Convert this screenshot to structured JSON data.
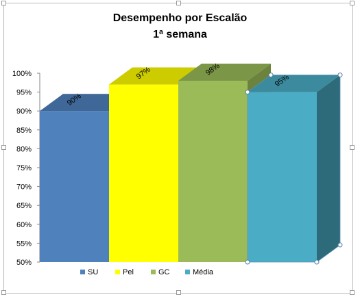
{
  "chart_data": {
    "type": "bar",
    "title": "Desempenho por Escalão",
    "subtitle": "1ª semana",
    "categories": [
      "SU",
      "Pel",
      "GC",
      "Média"
    ],
    "values": [
      0.9,
      0.97,
      0.98,
      0.95
    ],
    "data_labels": [
      "90%",
      "97%",
      "98%",
      "95%"
    ],
    "series": [
      {
        "name": "SU",
        "value": 0.9,
        "label": "90%",
        "color": "#4f81bd",
        "top": "#3f6797",
        "side": "#365a84"
      },
      {
        "name": "Pel",
        "value": 0.97,
        "label": "97%",
        "color": "#ffff00",
        "top": "#cccc00",
        "side": "#b3b300"
      },
      {
        "name": "GC",
        "value": 0.98,
        "label": "98%",
        "color": "#9bbb59",
        "top": "#7c9647",
        "side": "#6c833e"
      },
      {
        "name": "Média",
        "value": 0.95,
        "label": "95%",
        "color": "#4bacc6",
        "top": "#3c8a9e",
        "side": "#2e6b7a"
      }
    ],
    "ylim": [
      0.5,
      1.0
    ],
    "yticks": [
      "100%",
      "95%",
      "90%",
      "85%",
      "80%",
      "75%",
      "70%",
      "65%",
      "60%",
      "55%",
      "50%"
    ],
    "ytick_values": [
      1.0,
      0.95,
      0.9,
      0.85,
      0.8,
      0.75,
      0.7,
      0.65,
      0.6,
      0.55,
      0.5
    ],
    "grid": false,
    "legend_position": "bottom",
    "xlabel": "",
    "ylabel": ""
  }
}
